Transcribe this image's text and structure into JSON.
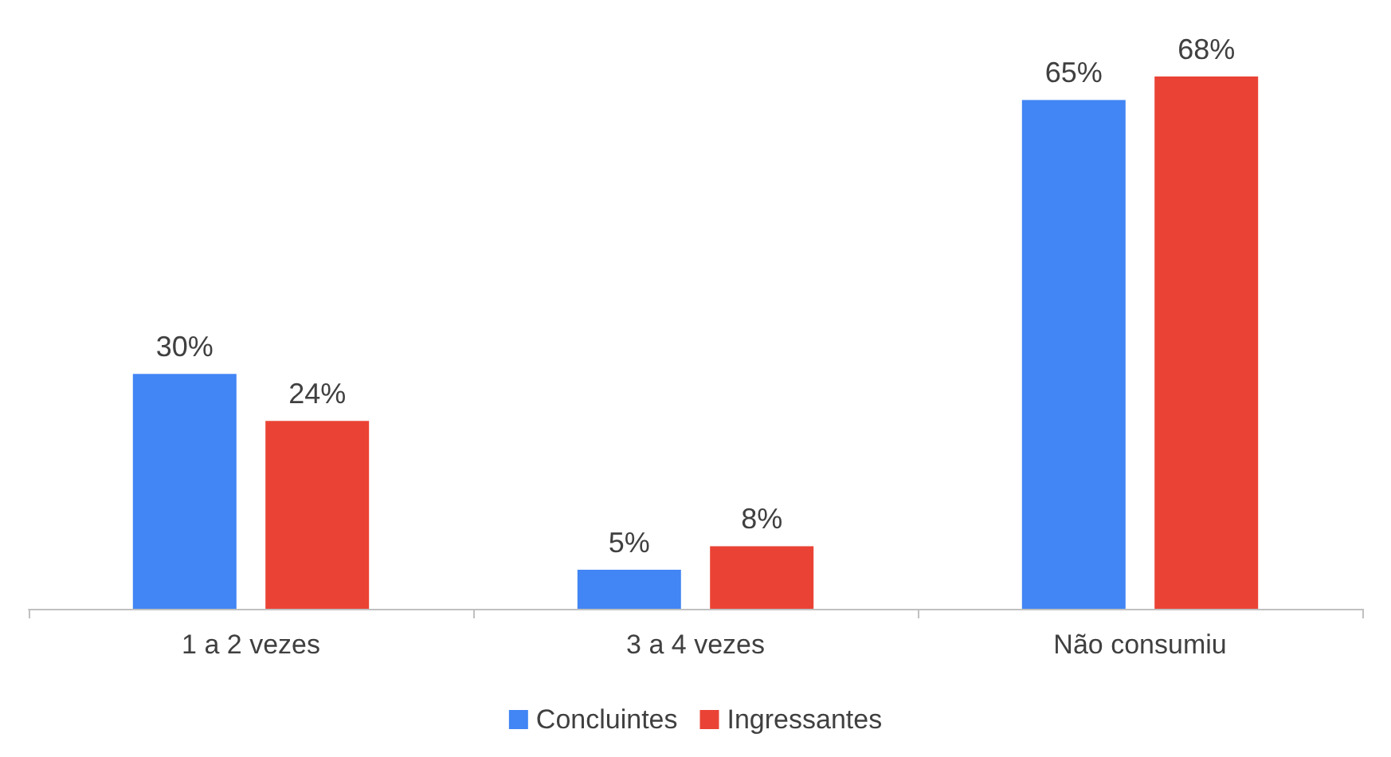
{
  "chart_data": {
    "type": "bar",
    "categories": [
      "1 a 2 vezes",
      "3 a 4 vezes",
      "Não consumiu"
    ],
    "series": [
      {
        "name": "Concluintes",
        "color": "#4285f4",
        "values": [
          30,
          5,
          65
        ],
        "value_labels": [
          "30%",
          "5%",
          "65%"
        ]
      },
      {
        "name": "Ingressantes",
        "color": "#ea4335",
        "values": [
          24,
          8,
          68
        ],
        "value_labels": [
          "24%",
          "8%",
          "68%"
        ]
      }
    ],
    "legend": "bottom"
  }
}
